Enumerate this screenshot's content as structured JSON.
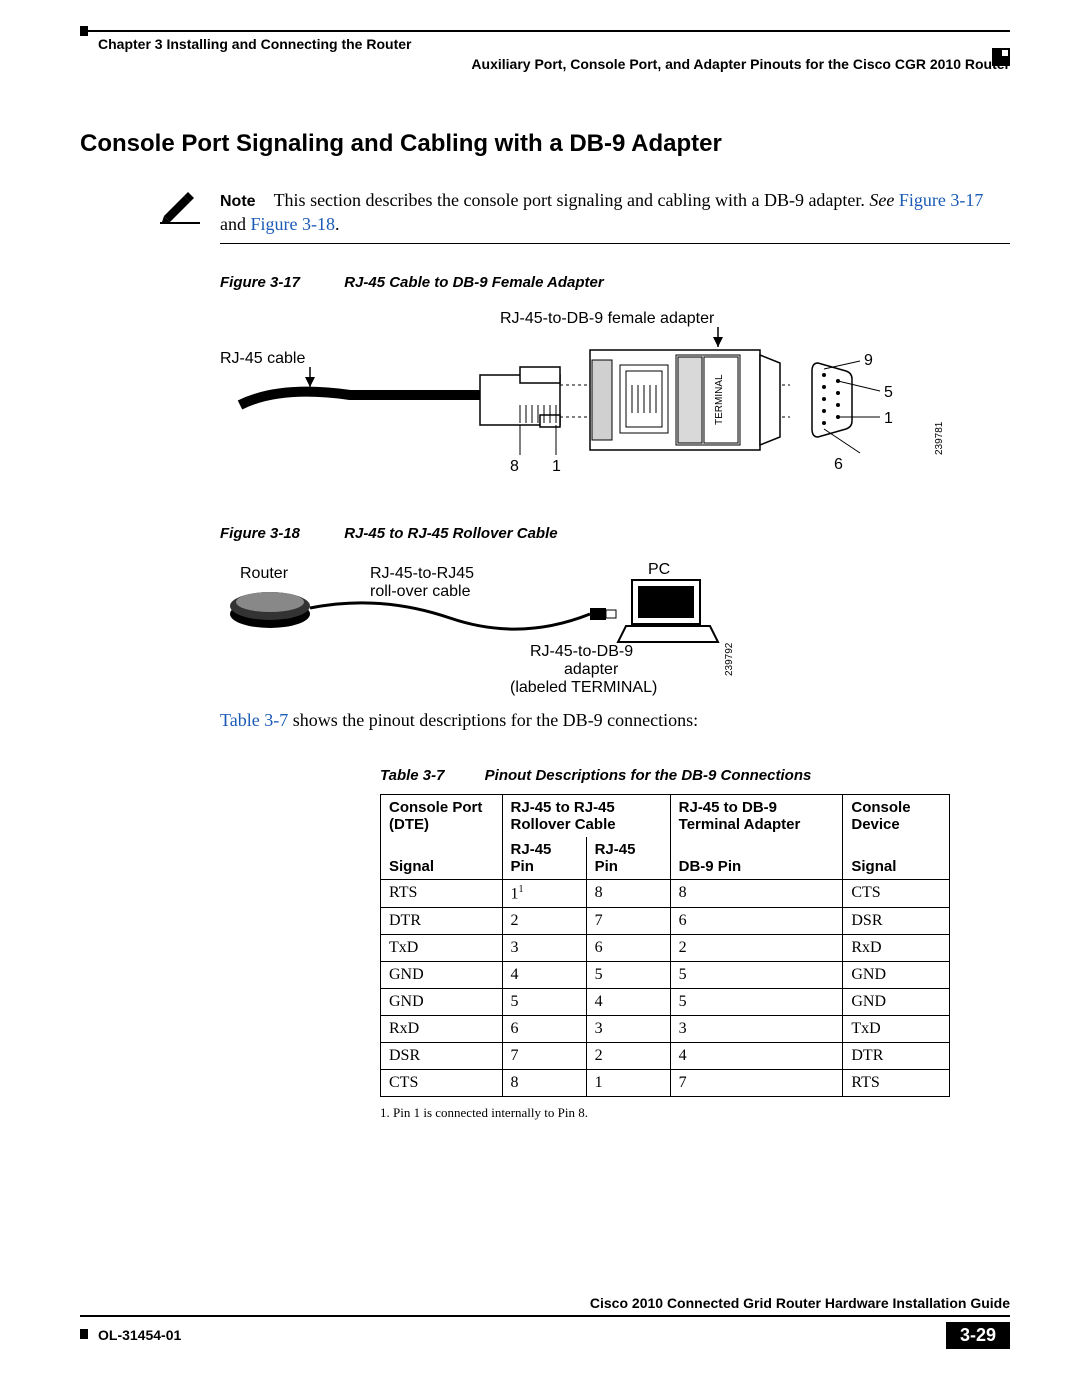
{
  "header": {
    "left": "Chapter 3      Installing and Connecting the Router",
    "right": "Auxiliary Port, Console Port, and Adapter Pinouts for the Cisco CGR 2010 Router"
  },
  "title": "Console Port Signaling and Cabling with a DB-9 Adapter",
  "note": {
    "label": "Note",
    "body_pre": "This section describes the console port signaling and cabling with a DB-9 adapter. ",
    "see": "See",
    "link1": "Figure 3-17",
    "mid": " and ",
    "link2": "Figure 3-18",
    "post": "."
  },
  "fig17": {
    "num": "Figure 3-17",
    "title": "RJ-45 Cable to DB-9 Female Adapter",
    "labels": {
      "rj45cable": "RJ-45 cable",
      "adapter": "RJ-45-to-DB-9 female adapter",
      "terminal": "TERMINAL",
      "n8": "8",
      "n1": "1",
      "n9": "9",
      "n5": "5",
      "n1r": "1",
      "n6": "6",
      "code": "239781"
    }
  },
  "fig18": {
    "num": "Figure 3-18",
    "title": "RJ-45 to RJ-45 Rollover Cable",
    "labels": {
      "router": "Router",
      "roll1": "RJ-45-to-RJ45",
      "roll2": "roll-over cable",
      "pc": "PC",
      "adp1": "RJ-45-to-DB-9",
      "adp2": "adapter",
      "adp3": "(labeled TERMINAL)",
      "code": "239792"
    }
  },
  "body_line": {
    "link": "Table 3-7",
    "rest": " shows the pinout descriptions for the DB-9 connections:"
  },
  "table": {
    "num": "Table 3-7",
    "title": "Pinout Descriptions for the DB-9 Connections",
    "head_top": [
      "Console Port (DTE)",
      "RJ-45 to RJ-45 Rollover Cable",
      "RJ-45 to DB-9 Terminal Adapter",
      "Console Device"
    ],
    "head_bot": [
      "Signal",
      "RJ-45 Pin",
      "RJ-45 Pin",
      "DB-9 Pin",
      "Signal"
    ],
    "rows": [
      [
        "RTS",
        "1",
        "8",
        "8",
        "CTS"
      ],
      [
        "DTR",
        "2",
        "7",
        "6",
        "DSR"
      ],
      [
        "TxD",
        "3",
        "6",
        "2",
        "RxD"
      ],
      [
        "GND",
        "4",
        "5",
        "5",
        "GND"
      ],
      [
        "GND",
        "5",
        "4",
        "5",
        "GND"
      ],
      [
        "RxD",
        "6",
        "3",
        "3",
        "TxD"
      ],
      [
        "DSR",
        "7",
        "2",
        "4",
        "DTR"
      ],
      [
        "CTS",
        "8",
        "1",
        "7",
        "RTS"
      ]
    ],
    "row0_sup": "1",
    "footnote": "1.   Pin 1 is connected internally to Pin 8."
  },
  "footer": {
    "title": "Cisco 2010  Connected Grid Router Hardware Installation Guide",
    "ol": "OL-31454-01",
    "page": "3-29"
  },
  "colors": {
    "link": "#1a5ab5",
    "text": "#000000",
    "bg": "#ffffff"
  }
}
